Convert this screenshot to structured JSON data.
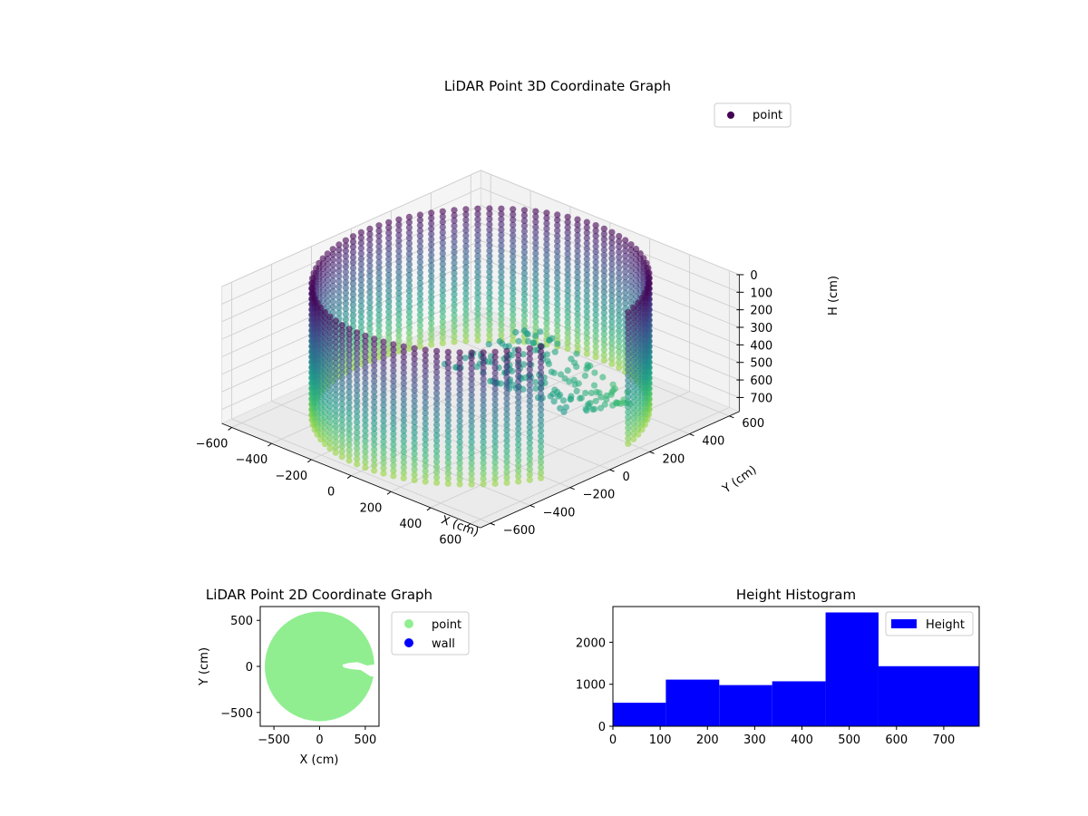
{
  "chart_data": [
    {
      "type": "scatter",
      "projection": "3d",
      "title": "LiDAR Point 3D Coordinate Graph",
      "xlabel": "X (cm)",
      "ylabel": "Y (cm)",
      "zlabel": "H (cm)",
      "xlim": [
        -650,
        650
      ],
      "ylim": [
        -650,
        650
      ],
      "zlim": [
        0,
        780
      ],
      "z_inverted": true,
      "xticks": [
        "−600",
        "−400",
        "−200",
        "0",
        "200",
        "400",
        "600"
      ],
      "yticks": [
        "−600",
        "−400",
        "−200",
        "0",
        "200",
        "400",
        "600"
      ],
      "zticks": [
        "0",
        "100",
        "200",
        "300",
        "400",
        "500",
        "600",
        "700"
      ],
      "colormap": "viridis",
      "legend": {
        "label": "point",
        "placement": "top-right",
        "color": "#440154"
      },
      "shape": {
        "description_values": {
          "cylinder_radius": 600,
          "cylinder_height_range": [
            0,
            780
          ],
          "angular_gap_degrees": [
            -20,
            15
          ],
          "ring_height_step": 30,
          "column_angle_step_degrees": 4
        }
      },
      "grid": true
    },
    {
      "type": "scatter",
      "title": "LiDAR Point 2D Coordinate Graph",
      "xlabel": "X (cm)",
      "ylabel": "Y (cm)",
      "xlim": [
        -650,
        650
      ],
      "ylim": [
        -650,
        650
      ],
      "xticks": [
        "−500",
        "0",
        "500"
      ],
      "yticks": [
        "500",
        "0",
        "−500"
      ],
      "series": [
        {
          "name": "point",
          "color": "#90ee90",
          "radius": 600
        },
        {
          "name": "wall",
          "color": "#0000ff"
        }
      ],
      "legend": {
        "placement": "outside-right"
      },
      "grid": false
    },
    {
      "type": "bar",
      "title": "Height Histogram",
      "xlabel": "",
      "ylabel": "",
      "bin_edges": [
        0,
        112,
        225,
        337,
        450,
        562,
        775
      ],
      "values": [
        560,
        1110,
        980,
        1070,
        2710,
        1430
      ],
      "xlim": [
        0,
        775
      ],
      "ylim": [
        0,
        2850
      ],
      "xticks": [
        "0",
        "100",
        "200",
        "300",
        "400",
        "500",
        "600",
        "700"
      ],
      "yticks": [
        "0",
        "1000",
        "2000"
      ],
      "series": [
        {
          "name": "Height",
          "color": "#0000ff"
        }
      ],
      "legend": {
        "placement": "top-right"
      },
      "grid": false
    }
  ]
}
